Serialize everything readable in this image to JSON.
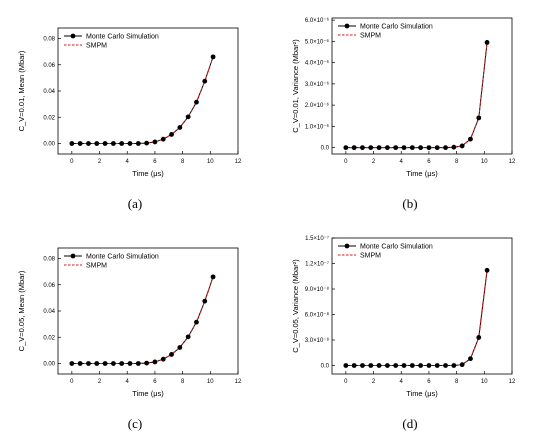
{
  "chart_data": [
    {
      "panel": "a",
      "caption": "(a)",
      "type": "line",
      "xlabel": "Time (μs)",
      "ylabel": "C_V=0.01, Mean (Mbar)",
      "xlim": [
        -1,
        12
      ],
      "ylim": [
        -0.008,
        0.088
      ],
      "xticks": [
        "0",
        "2",
        "4",
        "6",
        "8",
        "10",
        "12"
      ],
      "yticks": [
        "0.00",
        "0.02",
        "0.04",
        "0.06",
        "0.08"
      ],
      "ytick_values": [
        0,
        0.02,
        0.04,
        0.06,
        0.08
      ],
      "legend_position": "top-left",
      "x": [
        0,
        0.6,
        1.2,
        1.8,
        2.4,
        3.0,
        3.6,
        4.2,
        4.8,
        5.4,
        6.0,
        6.6,
        7.2,
        7.8,
        8.4,
        9.0,
        9.6,
        10.2
      ],
      "series": [
        {
          "name": "Monte Carlo Simulation",
          "style": "solid-circle",
          "color": "#000000",
          "values": [
            0,
            0,
            0,
            0,
            0,
            0,
            0,
            0,
            0,
            0.0003,
            0.0012,
            0.0033,
            0.0069,
            0.0122,
            0.0203,
            0.0315,
            0.0475,
            0.066
          ]
        },
        {
          "name": "SMPM",
          "style": "dashed",
          "color": "#e0191b",
          "values": [
            0,
            0,
            0,
            0,
            0,
            0,
            0,
            0,
            0,
            0.0003,
            0.0012,
            0.0033,
            0.0069,
            0.0122,
            0.0203,
            0.0315,
            0.0475,
            0.066
          ]
        }
      ]
    },
    {
      "panel": "b",
      "caption": "(b)",
      "type": "line",
      "xlabel": "Time (μs)",
      "ylabel": "C_V=0.01, Variance (Mbar²)",
      "xlim": [
        -1,
        12
      ],
      "ylim": [
        -3e-07,
        6.1e-06
      ],
      "xticks": [
        "0",
        "2",
        "4",
        "6",
        "8",
        "10",
        "12"
      ],
      "yticks": [
        "0.0",
        "1.0×10⁻⁶",
        "2.0×10⁻⁶",
        "3.0×10⁻⁶",
        "4.0×10⁻⁶",
        "5.0×10⁻⁶",
        "6.0×10⁻⁶"
      ],
      "ytick_values": [
        0,
        1e-06,
        2e-06,
        3e-06,
        4e-06,
        5e-06,
        6e-06
      ],
      "legend_position": "top-left",
      "x": [
        0,
        0.6,
        1.2,
        1.8,
        2.4,
        3.0,
        3.6,
        4.2,
        4.8,
        5.4,
        6.0,
        6.6,
        7.2,
        7.8,
        8.4,
        9.0,
        9.6,
        10.2
      ],
      "series": [
        {
          "name": "Monte Carlo Simulation",
          "style": "solid-circle",
          "color": "#000000",
          "values": [
            0,
            0,
            0,
            0,
            0,
            0,
            0,
            0,
            0,
            0,
            0,
            0,
            0,
            2e-08,
            8e-08,
            4e-07,
            1.4e-06,
            4.95e-06
          ]
        },
        {
          "name": "SMPM",
          "style": "dashed",
          "color": "#e0191b",
          "values": [
            0,
            0,
            0,
            0,
            0,
            0,
            0,
            0,
            0,
            0,
            0,
            0,
            0,
            2e-08,
            8e-08,
            4e-07,
            1.4e-06,
            4.95e-06
          ]
        }
      ]
    },
    {
      "panel": "c",
      "caption": "(c)",
      "type": "line",
      "xlabel": "Time (μs)",
      "ylabel": "C_V=0.05, Mean (Mbar)",
      "xlim": [
        -1,
        12
      ],
      "ylim": [
        -0.008,
        0.088
      ],
      "xticks": [
        "0",
        "2",
        "4",
        "6",
        "8",
        "10",
        "12"
      ],
      "yticks": [
        "0.00",
        "0.02",
        "0.04",
        "0.06",
        "0.08"
      ],
      "ytick_values": [
        0,
        0.02,
        0.04,
        0.06,
        0.08
      ],
      "legend_position": "top-left",
      "x": [
        0,
        0.6,
        1.2,
        1.8,
        2.4,
        3.0,
        3.6,
        4.2,
        4.8,
        5.4,
        6.0,
        6.6,
        7.2,
        7.8,
        8.4,
        9.0,
        9.6,
        10.2
      ],
      "series": [
        {
          "name": "Monte Carlo Simulation",
          "style": "solid-circle",
          "color": "#000000",
          "values": [
            0,
            0,
            0,
            0,
            0,
            0,
            0,
            0,
            0,
            0.0003,
            0.0012,
            0.0033,
            0.0069,
            0.0122,
            0.0203,
            0.0315,
            0.0475,
            0.066
          ]
        },
        {
          "name": "SMPM",
          "style": "dashed",
          "color": "#e0191b",
          "values": [
            0,
            0,
            0,
            0,
            0,
            0,
            0,
            0,
            0,
            0.0003,
            0.0012,
            0.0033,
            0.0069,
            0.0122,
            0.0203,
            0.0315,
            0.0475,
            0.066
          ]
        }
      ]
    },
    {
      "panel": "d",
      "caption": "(d)",
      "type": "line",
      "xlabel": "Time (μs)",
      "ylabel": "C_V=0.05, Variance (Mbar²)",
      "xlim": [
        -1,
        12
      ],
      "ylim": [
        -1e-08,
        1.5e-07
      ],
      "xticks": [
        "0",
        "2",
        "4",
        "6",
        "8",
        "10",
        "12"
      ],
      "yticks": [
        "0.0",
        "3.0×10⁻⁸",
        "6.0×10⁻⁸",
        "9.0×10⁻⁸",
        "1.2×10⁻⁷",
        "1.5×10⁻⁷"
      ],
      "ytick_values": [
        0,
        3e-08,
        6e-08,
        9e-08,
        1.2e-07,
        1.5e-07
      ],
      "legend_position": "top-left",
      "x": [
        0,
        0.6,
        1.2,
        1.8,
        2.4,
        3.0,
        3.6,
        4.2,
        4.8,
        5.4,
        6.0,
        6.6,
        7.2,
        7.8,
        8.4,
        9.0,
        9.6,
        10.2
      ],
      "series": [
        {
          "name": "Monte Carlo Simulation",
          "style": "solid-circle",
          "color": "#000000",
          "values": [
            0,
            0,
            0,
            0,
            0,
            0,
            0,
            0,
            0,
            0,
            0,
            0,
            0,
            0,
            1e-09,
            8e-09,
            3.3e-08,
            1.12e-07
          ]
        },
        {
          "name": "SMPM",
          "style": "dashed",
          "color": "#e0191b",
          "values": [
            0,
            0,
            0,
            0,
            0,
            0,
            0,
            0,
            0,
            0,
            0,
            0,
            0,
            0,
            1e-09,
            8e-09,
            3.3e-08,
            1.12e-07
          ]
        }
      ]
    }
  ]
}
